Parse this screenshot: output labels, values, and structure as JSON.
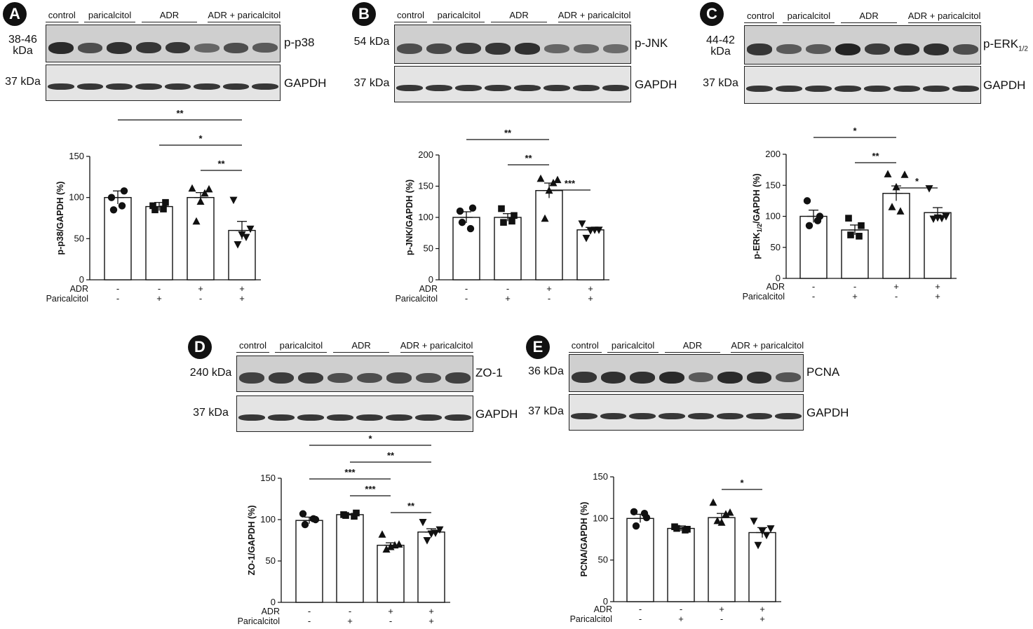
{
  "groups": [
    "control",
    "paricalcitol",
    "ADR",
    "ADR + paricalcitol"
  ],
  "panels": [
    {
      "id": "A",
      "kda_target": "38-46\nkDa",
      "target": "p-p38",
      "sub": "",
      "kda_ref": "37 kDa",
      "ref": "GAPDH"
    },
    {
      "id": "B",
      "kda_target": "54 kDa",
      "target": "p-JNK",
      "sub": "",
      "kda_ref": "37 kDa",
      "ref": "GAPDH"
    },
    {
      "id": "C",
      "kda_target": "44-42\nkDa",
      "target": "p-ERK",
      "sub": "1/2",
      "kda_ref": "37 kDa",
      "ref": "GAPDH"
    },
    {
      "id": "D",
      "kda_target": "240 kDa",
      "target": "ZO-1",
      "sub": "",
      "kda_ref": "37 kDa",
      "ref": "GAPDH"
    },
    {
      "id": "E",
      "kda_target": "36 kDa",
      "target": "PCNA",
      "sub": "",
      "kda_ref": "37 kDa",
      "ref": "GAPDH"
    }
  ],
  "treatment_rows": {
    "adr_label": "ADR",
    "par_label": "Paricalcitol",
    "adr": [
      "-",
      "-",
      "+",
      "+"
    ],
    "par": [
      "-",
      "+",
      "-",
      "+"
    ]
  },
  "chart_data": [
    {
      "panel": "A",
      "type": "bar",
      "ylabel": "p-p38/GAPDH (%)",
      "ylim": [
        0,
        150
      ],
      "yticks": [
        0,
        50,
        100,
        150
      ],
      "means": [
        100,
        89,
        100,
        60
      ],
      "sem": [
        8,
        5,
        6,
        11
      ],
      "points": [
        [
          100,
          108,
          85,
          90
        ],
        [
          90,
          94,
          85,
          86
        ],
        [
          111,
          110,
          95,
          71,
          105
        ],
        [
          97,
          62,
          55,
          43,
          52
        ]
      ],
      "markers": [
        "circle",
        "square",
        "triangle",
        "triangle-down"
      ],
      "sig": [
        {
          "from": 0,
          "to": 3,
          "label": "**"
        },
        {
          "from": 1,
          "to": 3,
          "label": "*"
        },
        {
          "from": 2,
          "to": 3,
          "label": "**"
        }
      ]
    },
    {
      "panel": "B",
      "type": "bar",
      "ylabel": "p-JNK/GAPDH (%)",
      "ylim": [
        0,
        200
      ],
      "yticks": [
        0,
        50,
        100,
        150,
        200
      ],
      "means": [
        100,
        100,
        143,
        80
      ],
      "sem": [
        9,
        6,
        12,
        4
      ],
      "points": [
        [
          110,
          115,
          92,
          82
        ],
        [
          114,
          103,
          92,
          94
        ],
        [
          162,
          160,
          143,
          98,
          155
        ],
        [
          90,
          80,
          79,
          67,
          80
        ]
      ],
      "markers": [
        "circle",
        "square",
        "triangle",
        "triangle-down"
      ],
      "sig": [
        {
          "from": 0,
          "to": 2,
          "label": "**"
        },
        {
          "from": 1,
          "to": 2,
          "label": "**"
        },
        {
          "from": 2,
          "to": 3,
          "label": "***"
        }
      ]
    },
    {
      "panel": "C",
      "type": "bar",
      "ylabel": "p-ERK1/2/GAPDH (%)",
      "ylim": [
        0,
        200
      ],
      "yticks": [
        0,
        50,
        100,
        150,
        200
      ],
      "means": [
        100,
        78,
        137,
        106
      ],
      "sem": [
        10,
        8,
        12,
        8
      ],
      "points": [
        [
          125,
          100,
          85,
          93
        ],
        [
          97,
          85,
          70,
          68
        ],
        [
          168,
          167,
          147,
          115,
          108
        ],
        [
          145,
          100,
          98,
          96,
          97
        ]
      ],
      "markers": [
        "circle",
        "square",
        "triangle",
        "triangle-down"
      ],
      "sig": [
        {
          "from": 0,
          "to": 2,
          "label": "*"
        },
        {
          "from": 1,
          "to": 2,
          "label": "**"
        },
        {
          "from": 2,
          "to": 3,
          "label": "*"
        }
      ]
    },
    {
      "panel": "D",
      "type": "bar",
      "ylabel": "ZO-1/GAPDH (%)",
      "ylim": [
        0,
        150
      ],
      "yticks": [
        0,
        50,
        100,
        150
      ],
      "means": [
        99,
        106,
        69,
        85
      ],
      "sem": [
        4,
        1,
        3,
        4
      ],
      "points": [
        [
          107,
          100,
          94,
          101
        ],
        [
          106,
          108,
          105,
          104
        ],
        [
          82,
          70,
          67,
          64,
          69
        ],
        [
          97,
          88,
          83,
          75,
          84
        ]
      ],
      "markers": [
        "circle",
        "square",
        "triangle",
        "triangle-down"
      ],
      "sig": [
        {
          "from": 0,
          "to": 3,
          "label": "*"
        },
        {
          "from": 1,
          "to": 3,
          "label": "**"
        },
        {
          "from": 0,
          "to": 2,
          "label": "***"
        },
        {
          "from": 1,
          "to": 2,
          "label": "***"
        },
        {
          "from": 2,
          "to": 3,
          "label": "**"
        }
      ]
    },
    {
      "panel": "E",
      "type": "bar",
      "ylabel": "PCNA/GAPDH (%)",
      "ylim": [
        0,
        150
      ],
      "yticks": [
        0,
        50,
        100,
        150
      ],
      "means": [
        100,
        88,
        101,
        83
      ],
      "sem": [
        5,
        3,
        5,
        6
      ],
      "points": [
        [
          108,
          101,
          91,
          106
        ],
        [
          90,
          87,
          88,
          86
        ],
        [
          119,
          107,
          95,
          97,
          105
        ],
        [
          97,
          88,
          85,
          68,
          80
        ]
      ],
      "markers": [
        "circle",
        "square",
        "triangle",
        "triangle-down"
      ],
      "sig": [
        {
          "from": 2,
          "to": 3,
          "label": "*"
        }
      ]
    }
  ]
}
